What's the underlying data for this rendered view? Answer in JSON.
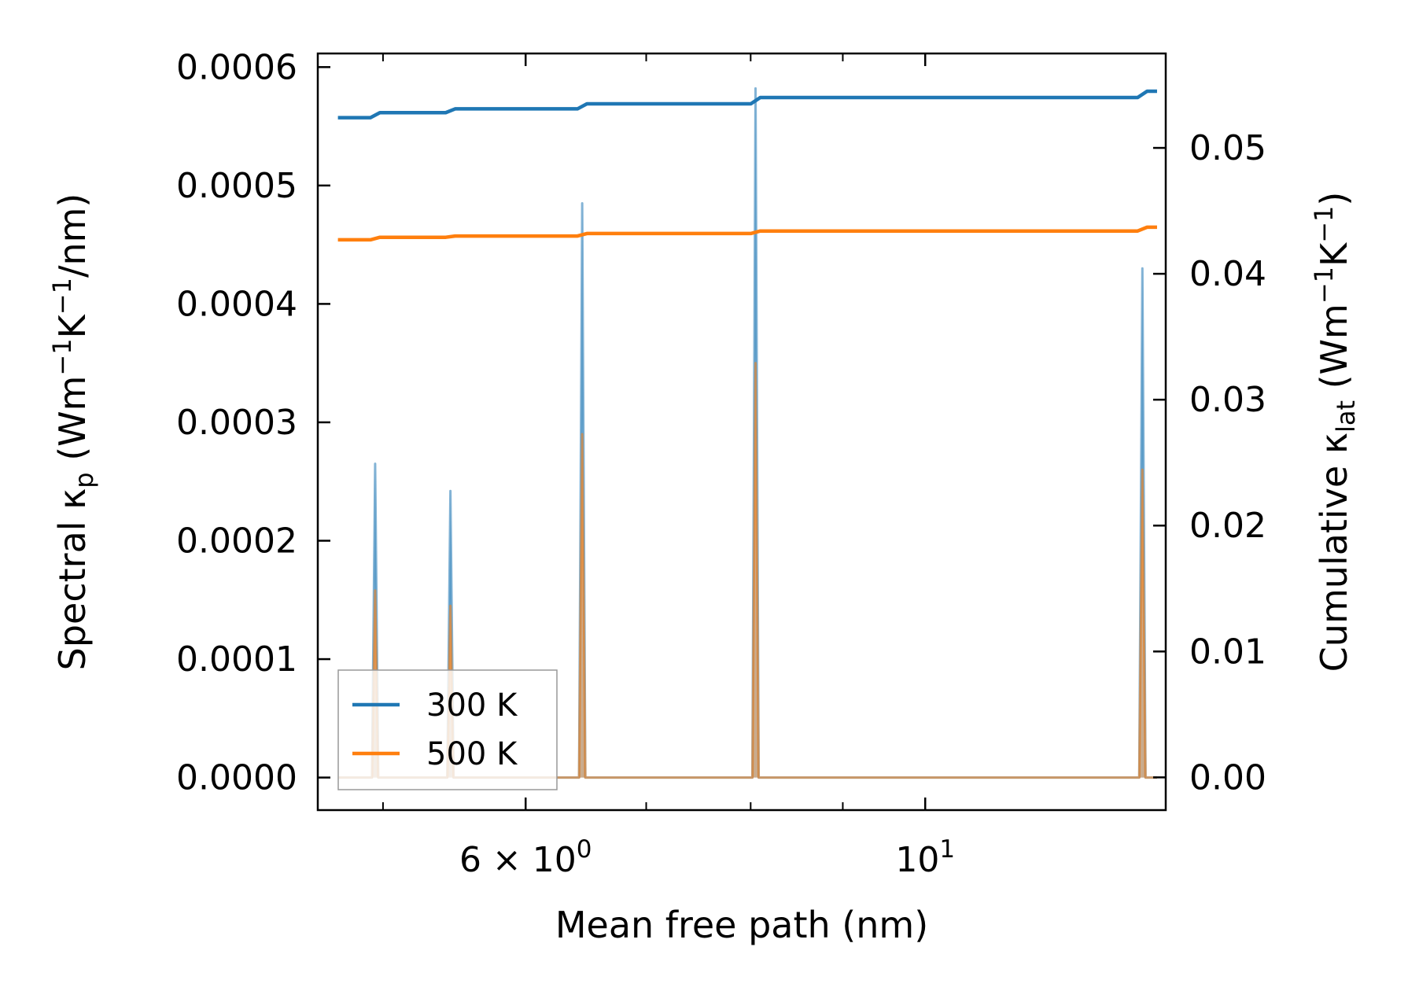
{
  "chart_data": {
    "type": "line",
    "x_scale": "log",
    "xlim": [
      4.6,
      13.6
    ],
    "ylim_left": [
      -2.75e-05,
      0.0006115
    ],
    "ylim_right": [
      -0.0026,
      0.0575
    ],
    "xlabel": "Mean free path (nm)",
    "ylabel_left": {
      "pre": "Spectral κ",
      "sub": "p",
      "post": " (Wm",
      "sup1": "−1",
      "mid": "K",
      "sup2": "−1",
      "tail": "/nm)"
    },
    "ylabel_right": {
      "pre": "Cumulative κ",
      "sub": "lat",
      "post": " (Wm",
      "sup1": "−1",
      "mid": "K",
      "sup2": "−1",
      "tail": ")"
    },
    "x_ticks": [
      {
        "value": 6,
        "base": "6 × 10",
        "exp": "0"
      },
      {
        "value": 10,
        "base": "10",
        "exp": "1"
      }
    ],
    "x_minor_ticks": [
      5,
      7,
      8,
      9
    ],
    "y_ticks_left": [
      "0.0000",
      "0.0001",
      "0.0002",
      "0.0003",
      "0.0004",
      "0.0005",
      "0.0006"
    ],
    "y_ticks_left_values": [
      0,
      0.0001,
      0.0002,
      0.0003,
      0.0004,
      0.0005,
      0.0006
    ],
    "y_ticks_right": [
      "0.00",
      "0.01",
      "0.02",
      "0.03",
      "0.04",
      "0.05"
    ],
    "y_ticks_right_values": [
      0,
      0.01,
      0.02,
      0.03,
      0.04,
      0.05
    ],
    "legend": {
      "position": "lower left",
      "entries": [
        "300 K",
        "500 K"
      ]
    },
    "colors": {
      "300 K": "#1f77b4",
      "500 K": "#ff7f0e"
    },
    "spectral_series": [
      {
        "name": "300 K",
        "peaks": [
          {
            "x": 4.95,
            "y": 0.000265
          },
          {
            "x": 5.45,
            "y": 0.000242
          },
          {
            "x": 6.45,
            "y": 0.000485
          },
          {
            "x": 8.05,
            "y": 0.000582
          },
          {
            "x": 13.2,
            "y": 0.00043
          }
        ]
      },
      {
        "name": "500 K",
        "peaks": [
          {
            "x": 4.95,
            "y": 0.000158
          },
          {
            "x": 5.45,
            "y": 0.000145
          },
          {
            "x": 6.45,
            "y": 0.00029
          },
          {
            "x": 8.05,
            "y": 0.00035
          },
          {
            "x": 13.2,
            "y": 0.00026
          }
        ]
      }
    ],
    "cumulative_series": [
      {
        "name": "300 K",
        "x_start": 4.72,
        "x_end": 13.45,
        "steps": [
          {
            "x": 4.72,
            "y": 0.0524
          },
          {
            "x": 4.95,
            "y": 0.0528
          },
          {
            "x": 5.45,
            "y": 0.0531
          },
          {
            "x": 6.45,
            "y": 0.0535
          },
          {
            "x": 8.05,
            "y": 0.054
          },
          {
            "x": 13.2,
            "y": 0.0545
          }
        ]
      },
      {
        "name": "500 K",
        "x_start": 4.72,
        "x_end": 13.45,
        "steps": [
          {
            "x": 4.72,
            "y": 0.0427
          },
          {
            "x": 4.95,
            "y": 0.0429
          },
          {
            "x": 5.45,
            "y": 0.043
          },
          {
            "x": 6.45,
            "y": 0.0432
          },
          {
            "x": 8.05,
            "y": 0.0434
          },
          {
            "x": 13.2,
            "y": 0.0437
          }
        ]
      }
    ]
  }
}
